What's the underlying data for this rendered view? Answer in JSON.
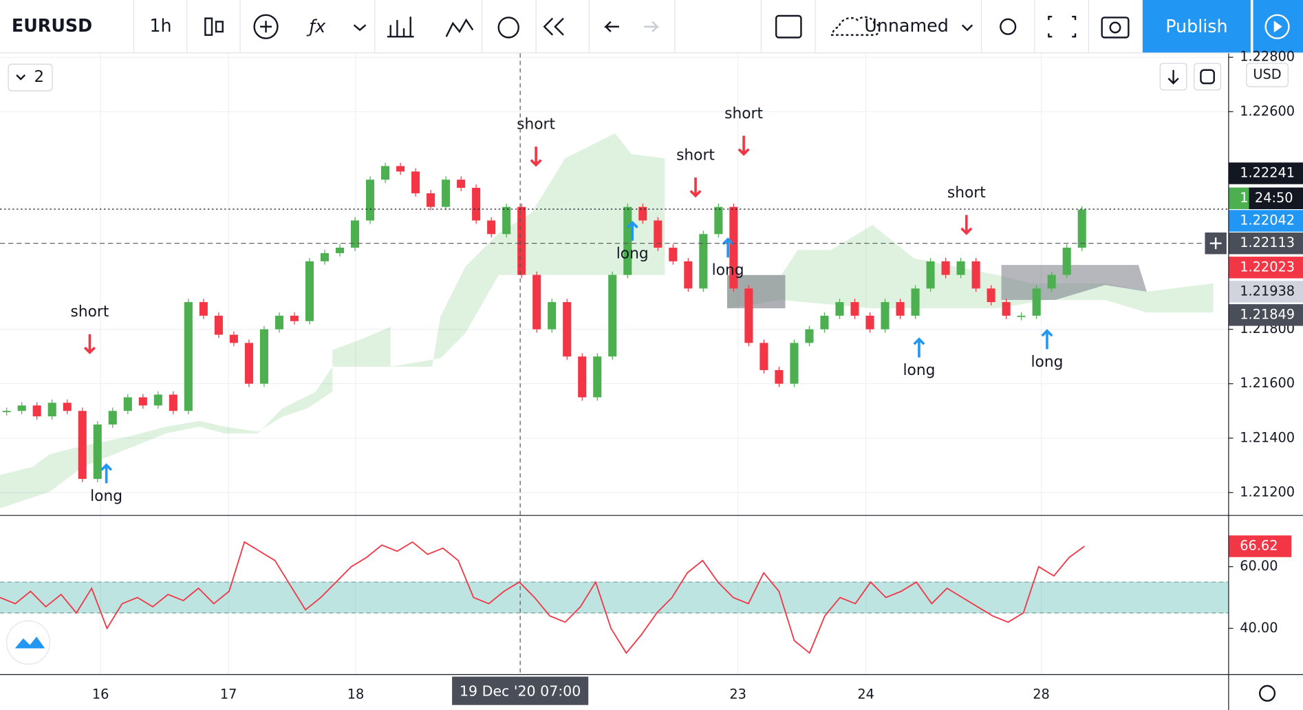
{
  "toolbar": {
    "symbol": "EURUSD",
    "interval": "1h",
    "layout_name": "Unnamed",
    "publish": "Publish"
  },
  "chart": {
    "indicator_count": "2",
    "currency": "USD",
    "price_ticks": [
      {
        "value": 1.228,
        "label": "1.22800"
      },
      {
        "value": 1.226,
        "label": "1.22600"
      },
      {
        "value": 1.218,
        "label": "1.21800"
      },
      {
        "value": 1.216,
        "label": "1.21600"
      },
      {
        "value": 1.214,
        "label": "1.21400"
      },
      {
        "value": 1.212,
        "label": "1.21200"
      }
    ],
    "price_tags": [
      "1.22241",
      "1.22042",
      "1.22113",
      "1.22023",
      "1.21938",
      "1.21849"
    ],
    "countdown_prefix": "1",
    "countdown": "24:50",
    "time_labels": [
      "16",
      "17",
      "18",
      "23",
      "24",
      "28"
    ],
    "crosshair_time": "19 Dec '20   07:00",
    "signals": [
      "short",
      "long",
      "short",
      "short",
      "short",
      "long",
      "long",
      "short",
      "long",
      "long"
    ],
    "closes": [
      1.215,
      1.2152,
      1.2148,
      1.2153,
      1.215,
      1.2125,
      1.2145,
      1.215,
      1.2155,
      1.2152,
      1.2156,
      1.215,
      1.219,
      1.2185,
      1.2178,
      1.2175,
      1.216,
      1.218,
      1.2185,
      1.2183,
      1.2205,
      1.2208,
      1.221,
      1.222,
      1.2235,
      1.224,
      1.2238,
      1.223,
      1.2225,
      1.2235,
      1.2232,
      1.222,
      1.2215,
      1.2225,
      1.22,
      1.218,
      1.219,
      1.217,
      1.2155,
      1.217,
      1.22,
      1.2225,
      1.222,
      1.221,
      1.2205,
      1.2195,
      1.2215,
      1.2225,
      1.2195,
      1.2175,
      1.2165,
      1.216,
      1.2175,
      1.218,
      1.2185,
      1.219,
      1.2185,
      1.218,
      1.219,
      1.2185,
      1.2195,
      1.2205,
      1.22,
      1.2205,
      1.2195,
      1.219,
      1.2185,
      1.2185,
      1.2195,
      1.22,
      1.221,
      1.2224
    ],
    "rsi": {
      "values": [
        50,
        48,
        52,
        47,
        51,
        45,
        53,
        40,
        48,
        50,
        47,
        51,
        49,
        53,
        48,
        52,
        68,
        65,
        62,
        54,
        46,
        50,
        55,
        60,
        63,
        67,
        65,
        68,
        64,
        66,
        62,
        50,
        48,
        52,
        55,
        50,
        44,
        42,
        47,
        55,
        40,
        32,
        38,
        45,
        50,
        58,
        62,
        55,
        50,
        48,
        58,
        52,
        36,
        32,
        44,
        50,
        48,
        55,
        50,
        52,
        55,
        48,
        53,
        50,
        47,
        44,
        42,
        45,
        60,
        57,
        63,
        66.62
      ],
      "ticks": [
        {
          "value": 60,
          "label": "60.00"
        },
        {
          "value": 40,
          "label": "40.00"
        }
      ],
      "current": {
        "value": 66.62,
        "label": "66.62"
      }
    }
  }
}
